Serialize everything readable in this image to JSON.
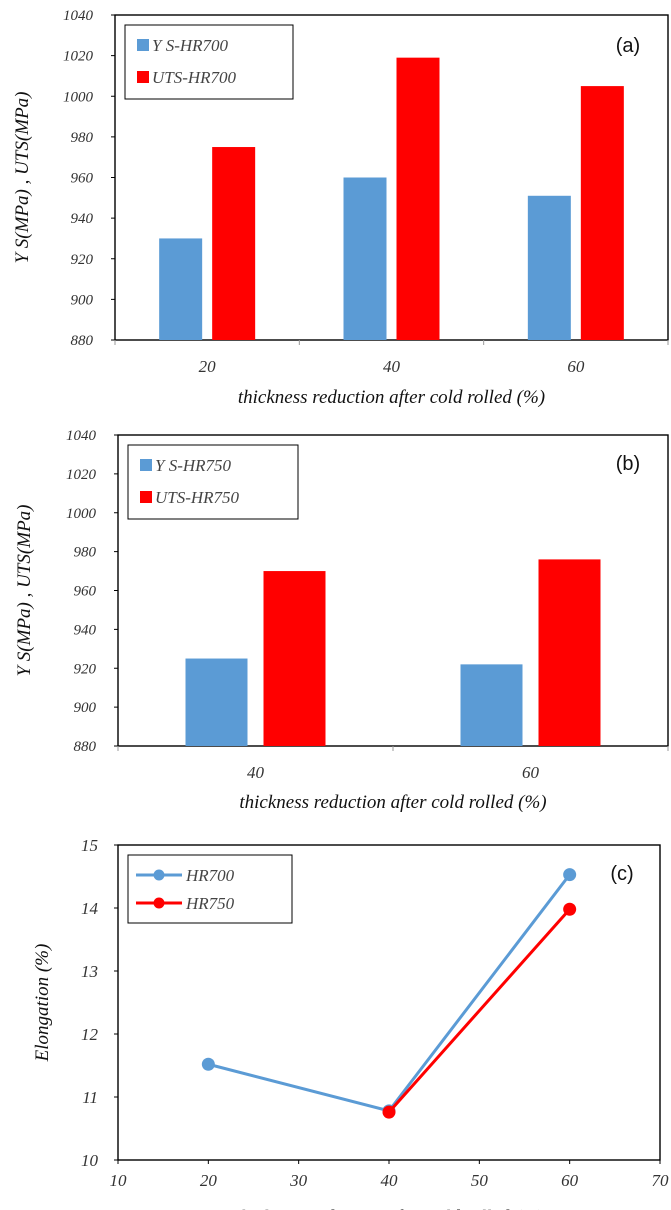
{
  "chart_data": [
    {
      "type": "bar",
      "panel_label": "(a)",
      "categories": [
        "20",
        "40",
        "60"
      ],
      "series": [
        {
          "name": "Y S-HR700",
          "color": "#5b9bd5",
          "values": [
            930,
            960,
            951
          ]
        },
        {
          "name": "UTS-HR700",
          "color": "#ff0000",
          "values": [
            975,
            1019,
            1005
          ]
        }
      ],
      "xlabel": "thickness reduction after cold rolled (%)",
      "ylabel": "Y S(MPa) , UTS(MPa)",
      "ylim": [
        880,
        1040
      ],
      "yticks": [
        "880",
        "900",
        "920",
        "940",
        "960",
        "980",
        "1000",
        "1020",
        "1040"
      ],
      "grid": false,
      "legend": "top-left"
    },
    {
      "type": "bar",
      "panel_label": "(b)",
      "categories": [
        "40",
        "60"
      ],
      "series": [
        {
          "name": "Y S-HR750",
          "color": "#5b9bd5",
          "values": [
            925,
            922
          ]
        },
        {
          "name": "UTS-HR750",
          "color": "#ff0000",
          "values": [
            970,
            976
          ]
        }
      ],
      "xlabel": "thickness reduction after cold rolled (%)",
      "ylabel": "Y S(MPa) , UTS(MPa)",
      "ylim": [
        880,
        1040
      ],
      "yticks": [
        "880",
        "900",
        "920",
        "940",
        "960",
        "980",
        "1000",
        "1020",
        "1040"
      ],
      "grid": false,
      "legend": "top-left"
    },
    {
      "type": "line",
      "panel_label": "(c)",
      "series": [
        {
          "name": "HR700",
          "color": "#5b9bd5",
          "x": [
            20,
            40,
            60
          ],
          "y": [
            11.52,
            10.78,
            14.53
          ]
        },
        {
          "name": "HR750",
          "color": "#ff0000",
          "x": [
            40,
            60
          ],
          "y": [
            10.76,
            13.98
          ]
        }
      ],
      "xlabel": "thickness reduction after cold rolled (%)",
      "ylabel": "Elongation (%)",
      "xlim": [
        10,
        70
      ],
      "ylim": [
        10,
        15
      ],
      "xticks": [
        "10",
        "20",
        "30",
        "40",
        "50",
        "60",
        "70"
      ],
      "yticks": [
        "10",
        "11",
        "12",
        "13",
        "14",
        "15"
      ],
      "grid": false,
      "legend": "top-left"
    }
  ]
}
